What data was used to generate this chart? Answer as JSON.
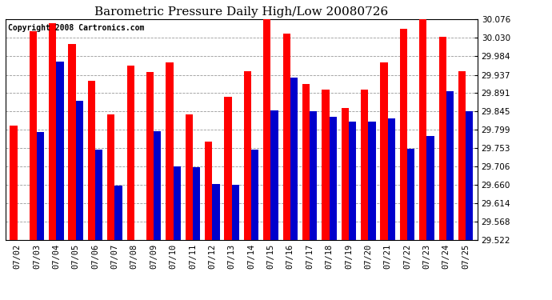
{
  "title": "Barometric Pressure Daily High/Low 20080726",
  "copyright": "Copyright 2008 Cartronics.com",
  "dates": [
    "07/02",
    "07/03",
    "07/04",
    "07/05",
    "07/06",
    "07/07",
    "07/08",
    "07/09",
    "07/10",
    "07/11",
    "07/12",
    "07/13",
    "07/14",
    "07/15",
    "07/16",
    "07/17",
    "07/18",
    "07/19",
    "07/20",
    "07/21",
    "07/22",
    "07/23",
    "07/24",
    "07/25"
  ],
  "highs": [
    29.81,
    30.047,
    30.067,
    30.014,
    29.921,
    29.838,
    29.96,
    29.944,
    29.968,
    29.838,
    29.77,
    29.882,
    29.947,
    30.09,
    30.041,
    29.913,
    29.9,
    29.854,
    29.9,
    29.968,
    30.053,
    30.077,
    30.032,
    29.947
  ],
  "lows": [
    29.522,
    29.794,
    29.97,
    29.872,
    29.75,
    29.658,
    29.522,
    29.796,
    29.706,
    29.705,
    29.663,
    29.66,
    29.75,
    29.848,
    29.93,
    29.845,
    29.832,
    29.82,
    29.82,
    29.828,
    29.752,
    29.783,
    29.896,
    29.845
  ],
  "high_color": "#ff0000",
  "low_color": "#0000cc",
  "bg_color": "#ffffff",
  "grid_color": "#999999",
  "ymin": 29.522,
  "ymax": 30.076,
  "yticks": [
    29.522,
    29.568,
    29.614,
    29.66,
    29.706,
    29.753,
    29.799,
    29.845,
    29.891,
    29.937,
    29.984,
    30.03,
    30.076
  ],
  "bar_width": 0.38,
  "title_fontsize": 11,
  "tick_fontsize": 7.5,
  "copyright_fontsize": 7
}
